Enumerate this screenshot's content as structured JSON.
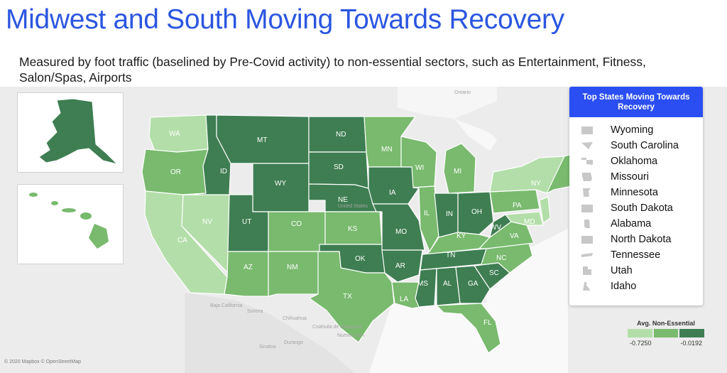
{
  "title": "Midwest and South Moving Towards Recovery",
  "subtitle": "Measured by foot traffic (baselined by Pre-Covid activity) to non-essential sectors, such as Entertainment, Fitness, Salon/Spas, Airports",
  "credit": "© 2020 Mapbox © OpenStreetMap",
  "top_states": {
    "header": "Top States Moving Towards Recovery",
    "items": [
      "Wyoming",
      "South Carolina",
      "Oklahoma",
      "Missouri",
      "Minnesota",
      "South Dakota",
      "Alabama",
      "North Dakota",
      "Tennessee",
      "Utah",
      "Idaho"
    ]
  },
  "legend": {
    "title": "Avg. Non-Essential",
    "min_label": "-0.7250",
    "max_label": "-0.0192",
    "colors": [
      "#b3dea9",
      "#79ba6e",
      "#3e7e52"
    ]
  },
  "state_labels": {
    "WA": "WA",
    "OR": "OR",
    "CA": "CA",
    "NV": "NV",
    "ID": "ID",
    "MT": "MT",
    "WY": "WY",
    "UT": "UT",
    "AZ": "AZ",
    "CO": "CO",
    "NM": "NM",
    "ND": "ND",
    "SD": "SD",
    "NE": "NE",
    "KS": "KS",
    "OK": "OK",
    "TX": "TX",
    "MN": "MN",
    "IA": "IA",
    "MO": "MO",
    "AR": "AR",
    "LA": "LA",
    "WI": "WI",
    "IL": "IL",
    "MI": "MI",
    "IN": "IN",
    "OH": "OH",
    "KY": "KY",
    "TN": "TN",
    "MS": "MS",
    "AL": "AL",
    "GA": "GA",
    "FL": "FL",
    "SC": "SC",
    "NC": "NC",
    "VA": "VA",
    "WV": "WV",
    "PA": "PA",
    "NY": "NY",
    "MD": "MD"
  },
  "place_labels": {
    "ontario": "Ontario",
    "united_states": "United States",
    "baja": "Baja California",
    "sonora": "Sonora",
    "chihuahua": "Chihuahua",
    "coahuila": "Coahuila de Zaragoza",
    "nuevo_leon": "Nuevo León",
    "durango": "Durango",
    "sinaloa": "Sinaloa"
  },
  "colors": {
    "light": "#b3dea9",
    "mid": "#79ba6e",
    "dark": "#3e7e52",
    "accent": "#2b56e0"
  }
}
